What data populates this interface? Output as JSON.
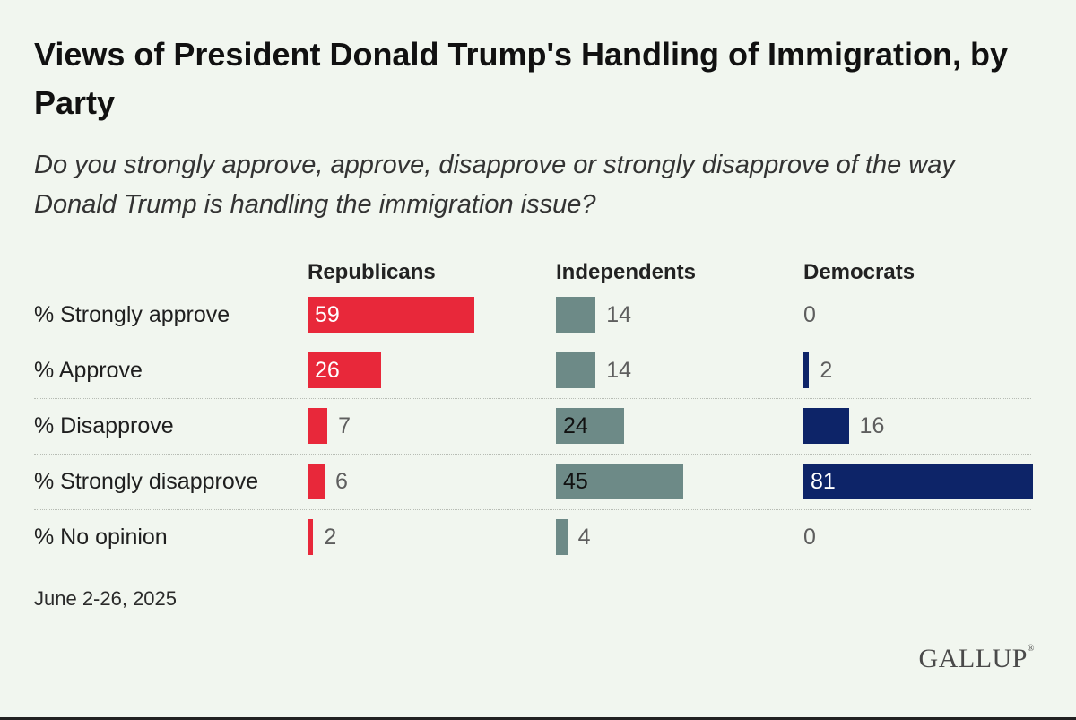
{
  "chart_data": {
    "type": "bar",
    "title": "Views of President Donald Trump's Handling of Immigration, by Party",
    "subtitle": "Do you strongly approve, approve, disapprove or strongly disapprove of the way Donald Trump is handling the immigration issue?",
    "categories": [
      "% Strongly approve",
      "% Approve",
      "% Disapprove",
      "% Strongly disapprove",
      "% No opinion"
    ],
    "series": [
      {
        "name": "Republicans",
        "values": [
          59,
          26,
          7,
          6,
          2
        ],
        "color": "#e8283a"
      },
      {
        "name": "Independents",
        "values": [
          14,
          14,
          24,
          45,
          4
        ],
        "color": "#6d8a87"
      },
      {
        "name": "Democrats",
        "values": [
          0,
          2,
          16,
          81,
          0
        ],
        "color": "#0d2468"
      }
    ],
    "ylim": [
      0,
      100
    ]
  },
  "footer": {
    "date": "June 2-26, 2025",
    "logo": "GALLUP"
  }
}
